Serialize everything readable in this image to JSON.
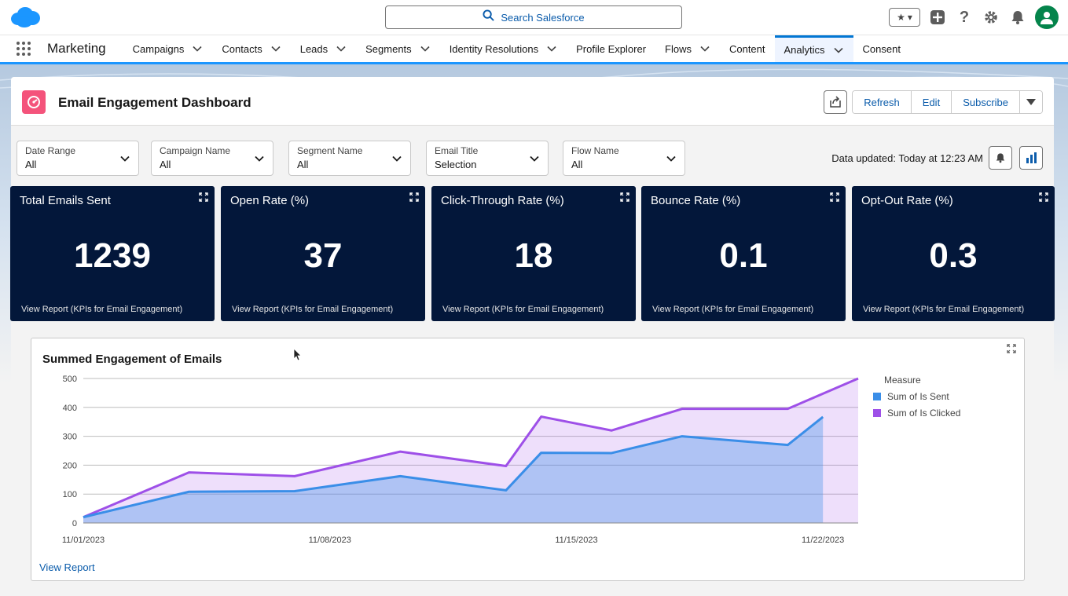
{
  "header": {
    "search_placeholder": "Search Salesforce"
  },
  "nav": {
    "app_name": "Marketing",
    "items": [
      {
        "label": "Campaigns",
        "dropdown": true
      },
      {
        "label": "Contacts",
        "dropdown": true
      },
      {
        "label": "Leads",
        "dropdown": true
      },
      {
        "label": "Segments",
        "dropdown": true
      },
      {
        "label": "Identity Resolutions",
        "dropdown": true
      },
      {
        "label": "Profile Explorer",
        "dropdown": false
      },
      {
        "label": "Flows",
        "dropdown": true
      },
      {
        "label": "Content",
        "dropdown": false
      },
      {
        "label": "Analytics",
        "dropdown": true,
        "active": true
      },
      {
        "label": "Consent",
        "dropdown": false
      }
    ]
  },
  "dashboard": {
    "title": "Email Engagement Dashboard",
    "buttons": {
      "refresh": "Refresh",
      "edit": "Edit",
      "subscribe": "Subscribe"
    },
    "filters": [
      {
        "label": "Date Range",
        "value": "All"
      },
      {
        "label": "Campaign Name",
        "value": "All"
      },
      {
        "label": "Segment Name",
        "value": "All"
      },
      {
        "label": "Email Title",
        "value": "Selection"
      },
      {
        "label": "Flow Name",
        "value": "All"
      }
    ],
    "data_updated": "Data updated: Today at 12:23 AM",
    "kpis": [
      {
        "title": "Total Emails Sent",
        "value": "1239",
        "link": "View Report (KPIs for Email Engagement)"
      },
      {
        "title": "Open Rate (%)",
        "value": "37",
        "link": "View Report (KPIs for Email Engagement)"
      },
      {
        "title": "Click-Through Rate (%)",
        "value": "18",
        "link": "View Report (KPIs for Email Engagement)"
      },
      {
        "title": "Bounce Rate (%)",
        "value": "0.1",
        "link": "View Report (KPIs for Email Engagement)"
      },
      {
        "title": "Opt-Out Rate (%)",
        "value": "0.3",
        "link": "View Report (KPIs for Email Engagement)"
      }
    ],
    "chart_panel": {
      "view_report": "View Report"
    }
  },
  "colors": {
    "brand_blue": "#0176d3",
    "kpi_bg": "#03173a",
    "series_sent": "#3a8ee8",
    "series_clicked": "#9e50e8"
  },
  "chart_data": {
    "type": "area",
    "title": "Summed Engagement of Emails",
    "xlabel": "",
    "ylabel": "",
    "ylim": [
      0,
      500
    ],
    "yticks": [
      0,
      100,
      200,
      300,
      400,
      500
    ],
    "x": [
      "11/01/2023",
      "11/02/2023",
      "11/03/2023",
      "11/04/2023",
      "11/05/2023",
      "11/06/2023",
      "11/07/2023",
      "11/08/2023",
      "11/09/2023",
      "11/10/2023",
      "11/11/2023",
      "11/12/2023",
      "11/13/2023",
      "11/14/2023",
      "11/15/2023",
      "11/16/2023",
      "11/17/2023",
      "11/18/2023",
      "11/19/2023",
      "11/20/2023",
      "11/21/2023",
      "11/22/2023",
      "11/23/2023"
    ],
    "xticks": [
      "11/01/2023",
      "11/08/2023",
      "11/15/2023",
      "11/22/2023"
    ],
    "legend_title": "Measure",
    "legend_position": "right",
    "grid": true,
    "series": [
      {
        "name": "Sum of Is Sent",
        "points": [
          [
            "11/01/2023",
            20
          ],
          [
            "11/04/2023",
            108
          ],
          [
            "11/07/2023",
            110
          ],
          [
            "11/10/2023",
            162
          ],
          [
            "11/13/2023",
            113
          ],
          [
            "11/14/2023",
            243
          ],
          [
            "11/16/2023",
            242
          ],
          [
            "11/18/2023",
            300
          ],
          [
            "11/21/2023",
            270
          ],
          [
            "11/22/2023",
            367
          ]
        ]
      },
      {
        "name": "Sum of Is Clicked",
        "points": [
          [
            "11/01/2023",
            20
          ],
          [
            "11/04/2023",
            175
          ],
          [
            "11/07/2023",
            162
          ],
          [
            "11/10/2023",
            247
          ],
          [
            "11/13/2023",
            197
          ],
          [
            "11/14/2023",
            368
          ],
          [
            "11/16/2023",
            320
          ],
          [
            "11/18/2023",
            395
          ],
          [
            "11/21/2023",
            395
          ],
          [
            "11/23/2023",
            500
          ]
        ]
      }
    ]
  }
}
